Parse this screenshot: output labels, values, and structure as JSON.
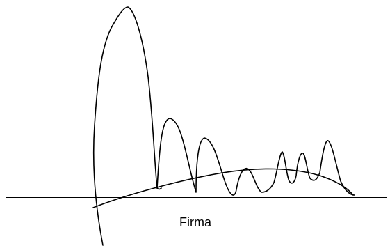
{
  "signature_block": {
    "caption": "Firma"
  },
  "colors": {
    "ink": "#000000",
    "background": "#ffffff"
  }
}
